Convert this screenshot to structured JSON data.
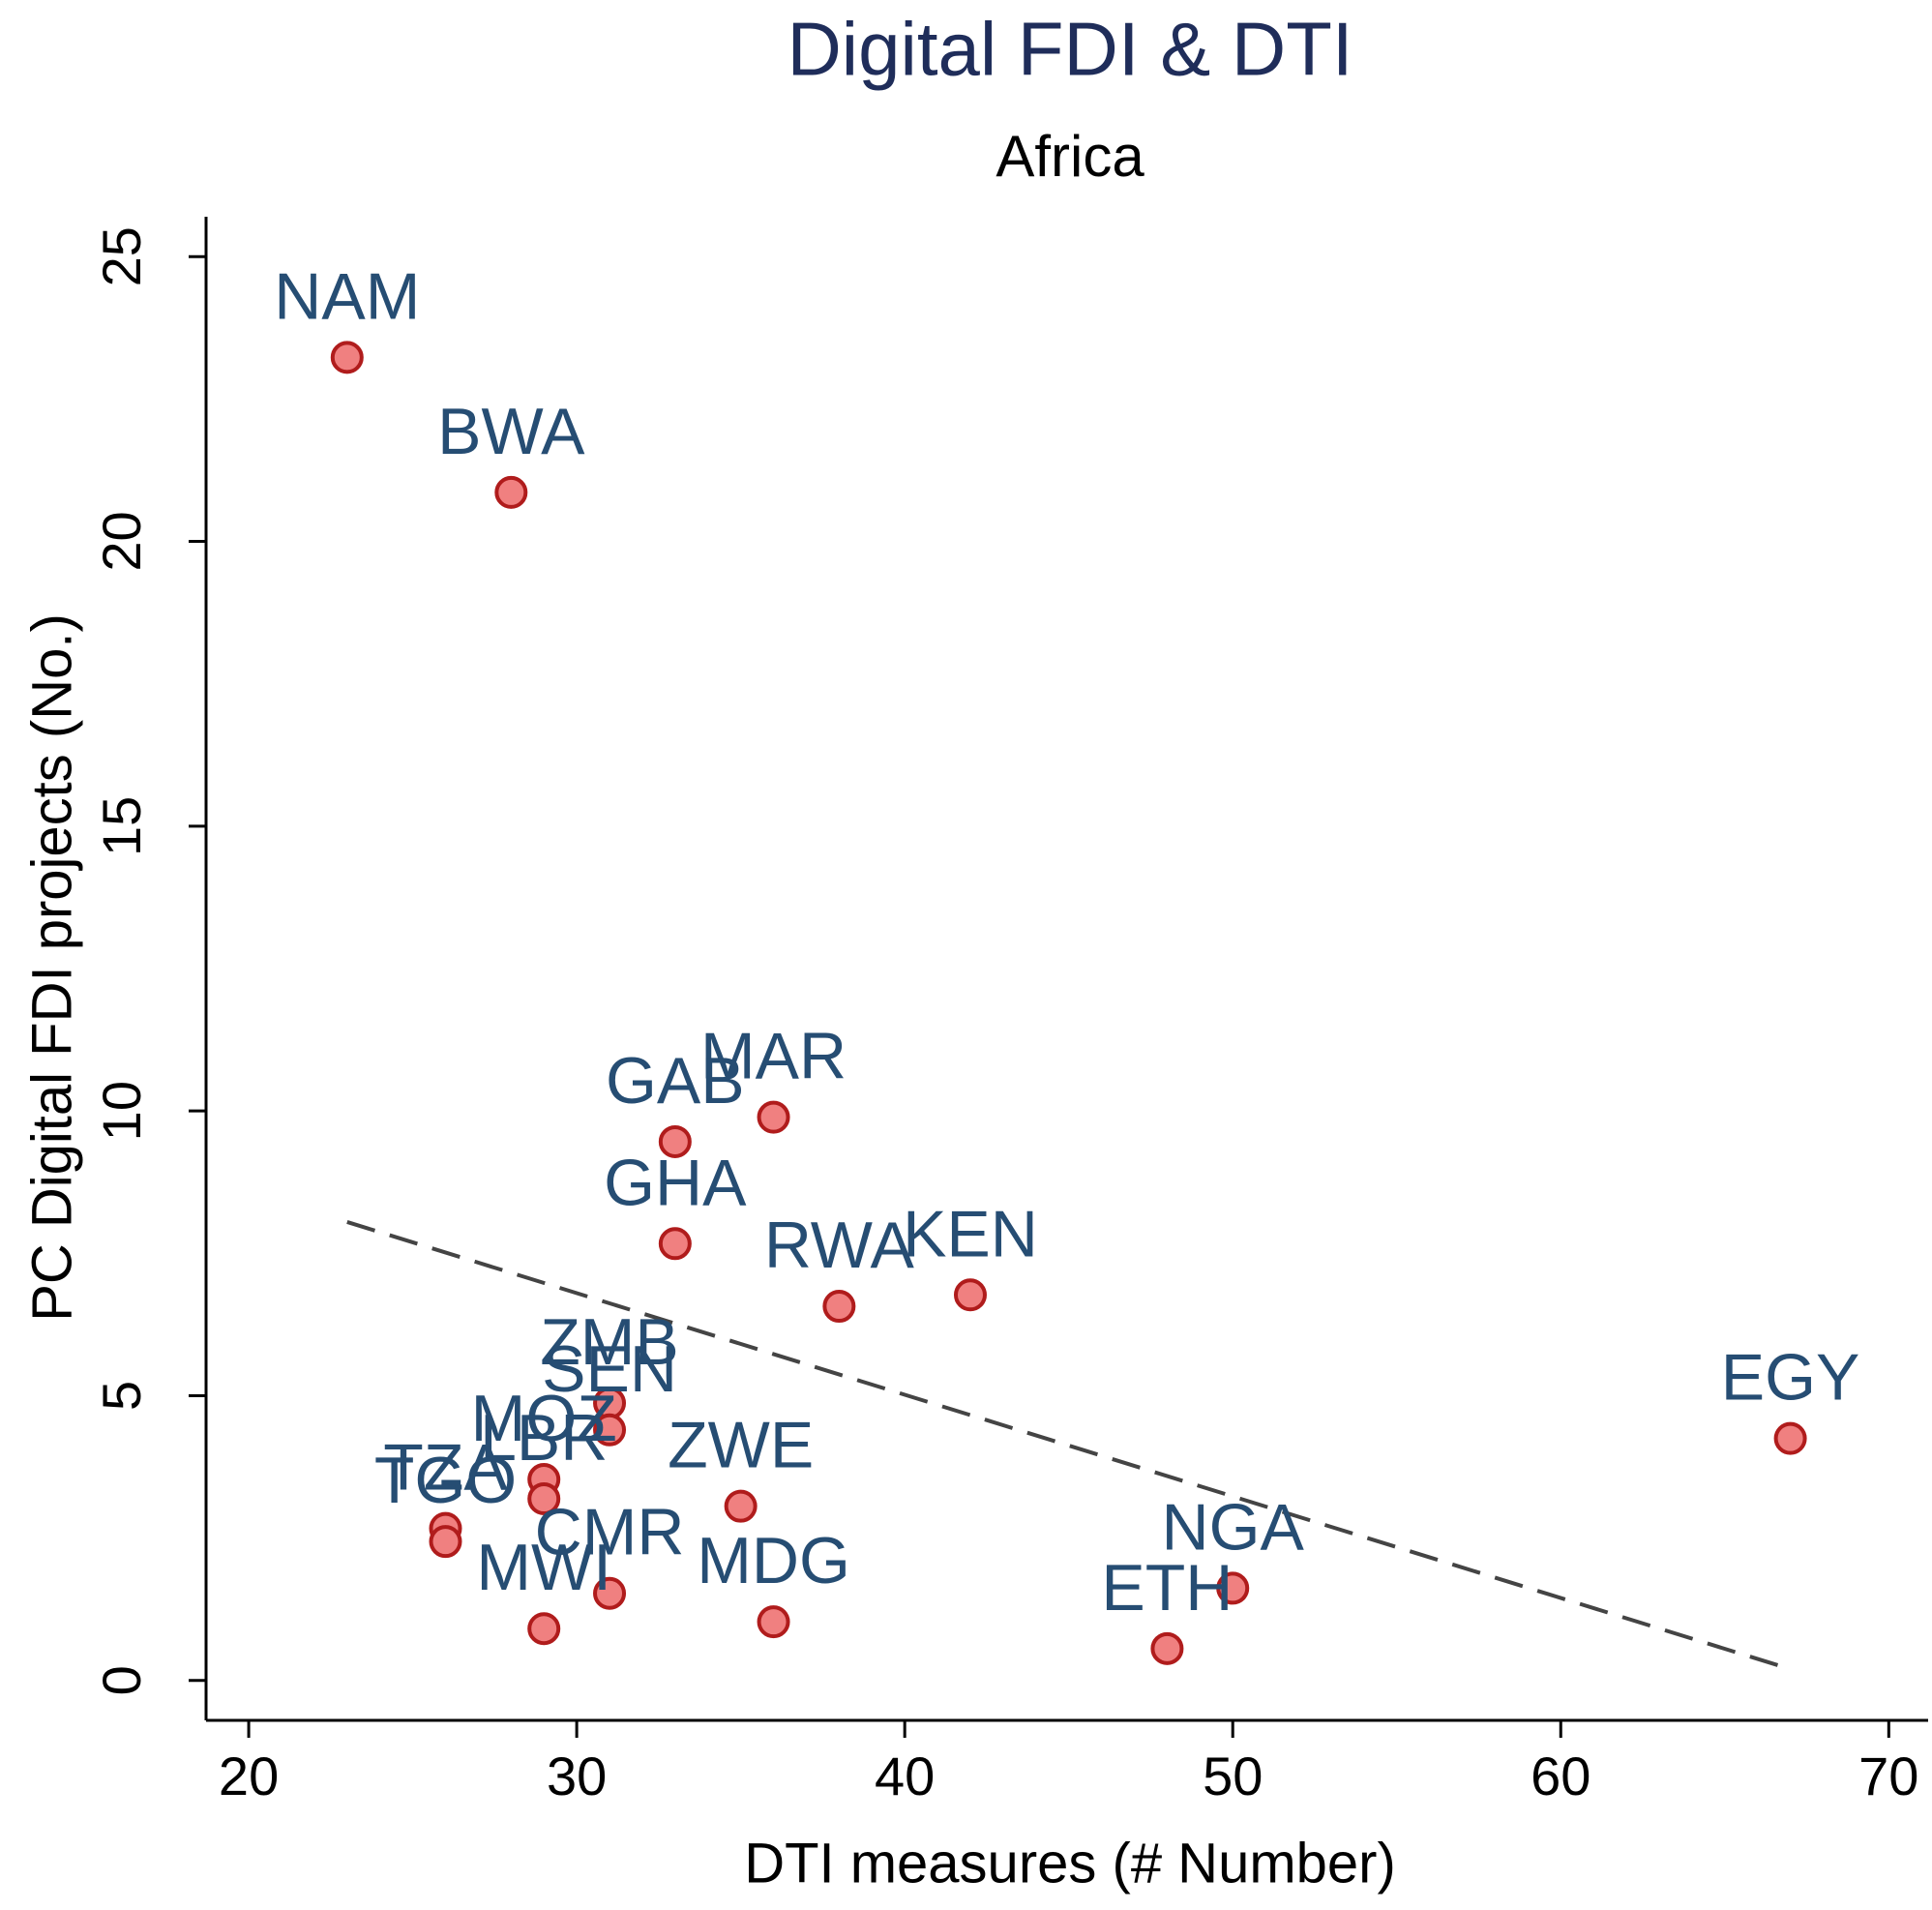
{
  "chart_data": {
    "type": "scatter",
    "title": "Digital FDI & DTI",
    "subtitle": "Africa",
    "x_label": "DTI measures (# Number)",
    "y_label": "PC Digital FDI projects (No.)",
    "series": [
      {
        "color": "#f08080",
        "labels": [
          "NAM",
          "BWA",
          "MAR",
          "GAB",
          "GHA",
          "RWA",
          "KEN",
          "ZMB",
          "SEN",
          "MOZ",
          "LBR",
          "ZWE",
          "TZA",
          "TGO",
          "CMR",
          "MWI",
          "MDG",
          "NGA",
          "ETH",
          "EGY"
        ],
        "x": [
          23,
          28,
          36,
          33,
          33,
          38,
          42,
          31,
          31,
          29,
          29,
          35,
          26,
          26,
          31,
          29,
          36,
          50,
          48,
          67
        ],
        "values": [
          23.23,
          20.86,
          9.89,
          9.46,
          7.67,
          6.57,
          6.77,
          4.87,
          4.4,
          3.53,
          3.19,
          3.06,
          2.67,
          2.44,
          1.53,
          0.91,
          1.03,
          1.62,
          0.56,
          4.25
        ]
      }
    ],
    "fit": {
      "x": [
        23,
        67
      ],
      "values": [
        8.05,
        0.2
      ]
    },
    "xlim": [
      18.7,
      71.2
    ],
    "ylim": [
      -0.7,
      25.7
    ],
    "xticks": [
      20,
      30,
      40,
      50,
      60,
      70
    ],
    "yticks": [
      0,
      5,
      10,
      15,
      20,
      25
    ]
  }
}
